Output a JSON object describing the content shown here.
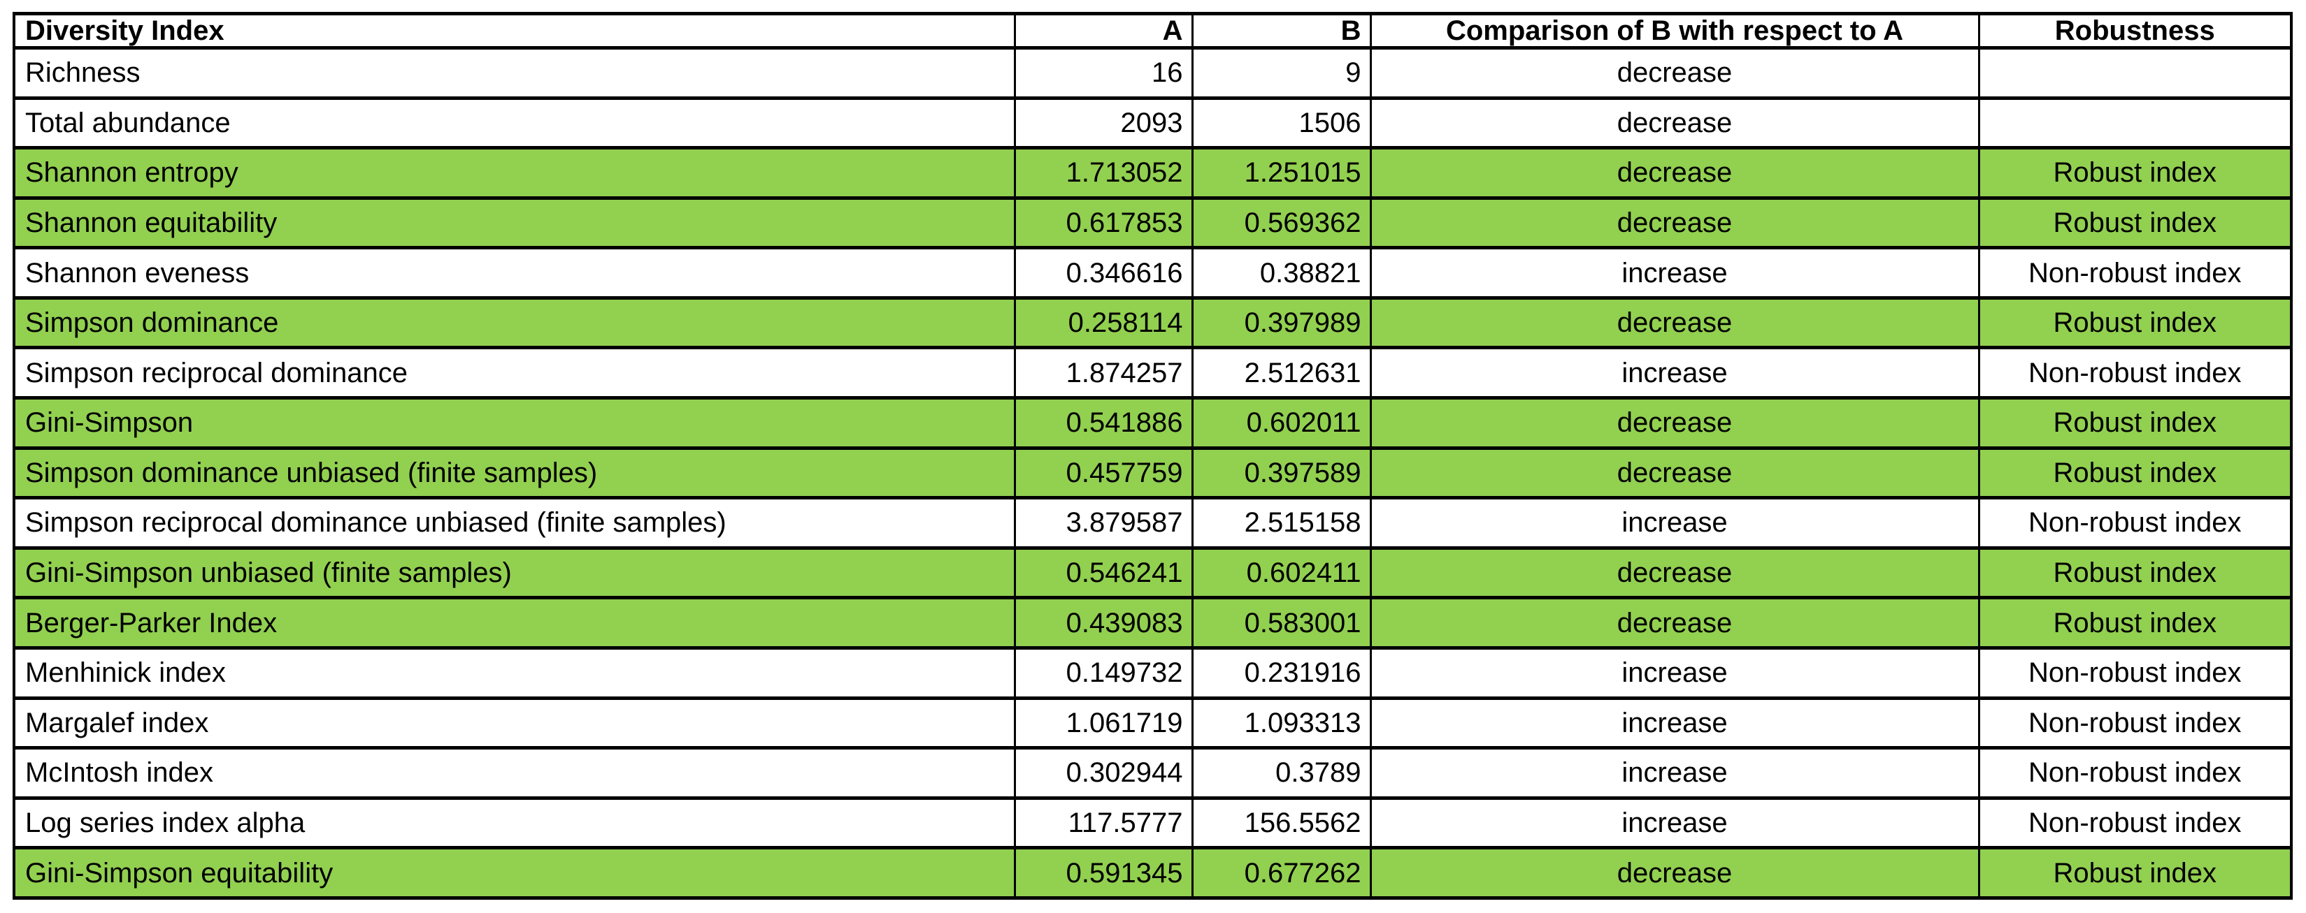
{
  "colors": {
    "highlight_green": "#92d050",
    "border": "#000000",
    "background": "#ffffff",
    "text": "#000000"
  },
  "table": {
    "columns": [
      {
        "key": "name",
        "label": "Diversity Index",
        "align": "left"
      },
      {
        "key": "a",
        "label": "A",
        "align": "right"
      },
      {
        "key": "b",
        "label": "B",
        "align": "right"
      },
      {
        "key": "comparison",
        "label": "Comparison of B with respect to A",
        "align": "center"
      },
      {
        "key": "robustness",
        "label": "Robustness",
        "align": "center"
      }
    ],
    "rows": [
      {
        "name": "Richness",
        "a": "16",
        "b": "9",
        "comparison": "decrease",
        "robustness": "",
        "highlighted": false
      },
      {
        "name": "Total abundance",
        "a": "2093",
        "b": "1506",
        "comparison": "decrease",
        "robustness": "",
        "highlighted": false
      },
      {
        "name": "Shannon entropy",
        "a": "1.713052",
        "b": "1.251015",
        "comparison": "decrease",
        "robustness": "Robust index",
        "highlighted": true
      },
      {
        "name": "Shannon equitability",
        "a": "0.617853",
        "b": "0.569362",
        "comparison": "decrease",
        "robustness": "Robust index",
        "highlighted": true
      },
      {
        "name": "Shannon eveness",
        "a": "0.346616",
        "b": "0.38821",
        "comparison": "increase",
        "robustness": "Non-robust index",
        "highlighted": false
      },
      {
        "name": "Simpson dominance",
        "a": "0.258114",
        "b": "0.397989",
        "comparison": "decrease",
        "robustness": "Robust index",
        "highlighted": true
      },
      {
        "name": "Simpson reciprocal dominance",
        "a": "1.874257",
        "b": "2.512631",
        "comparison": "increase",
        "robustness": "Non-robust index",
        "highlighted": false
      },
      {
        "name": "Gini-Simpson",
        "a": "0.541886",
        "b": "0.602011",
        "comparison": "decrease",
        "robustness": "Robust index",
        "highlighted": true
      },
      {
        "name": "Simpson dominance unbiased (finite samples)",
        "a": "0.457759",
        "b": "0.397589",
        "comparison": "decrease",
        "robustness": "Robust index",
        "highlighted": true
      },
      {
        "name": "Simpson reciprocal dominance unbiased (finite samples)",
        "a": "3.879587",
        "b": "2.515158",
        "comparison": "increase",
        "robustness": "Non-robust index",
        "highlighted": false
      },
      {
        "name": "Gini-Simpson unbiased (finite samples)",
        "a": "0.546241",
        "b": "0.602411",
        "comparison": "decrease",
        "robustness": "Robust index",
        "highlighted": true
      },
      {
        "name": "Berger-Parker Index",
        "a": "0.439083",
        "b": "0.583001",
        "comparison": "decrease",
        "robustness": "Robust index",
        "highlighted": true
      },
      {
        "name": "Menhinick index",
        "a": "0.149732",
        "b": "0.231916",
        "comparison": "increase",
        "robustness": "Non-robust index",
        "highlighted": false
      },
      {
        "name": "Margalef index",
        "a": "1.061719",
        "b": "1.093313",
        "comparison": "increase",
        "robustness": "Non-robust index",
        "highlighted": false
      },
      {
        "name": "McIntosh index",
        "a": "0.302944",
        "b": "0.3789",
        "comparison": "increase",
        "robustness": "Non-robust index",
        "highlighted": false
      },
      {
        "name": "Log series index alpha",
        "a": "117.5777",
        "b": "156.5562",
        "comparison": "increase",
        "robustness": "Non-robust index",
        "highlighted": false
      },
      {
        "name": "Gini-Simpson equitability",
        "a": "0.591345",
        "b": "0.677262",
        "comparison": "decrease",
        "robustness": "Robust index",
        "highlighted": true
      }
    ]
  },
  "chart_data": {
    "type": "table",
    "title": "",
    "columns": [
      "Diversity Index",
      "A",
      "B",
      "Comparison of B with respect to A",
      "Robustness"
    ],
    "rows": [
      [
        "Richness",
        16,
        9,
        "decrease",
        ""
      ],
      [
        "Total abundance",
        2093,
        1506,
        "decrease",
        ""
      ],
      [
        "Shannon entropy",
        1.713052,
        1.251015,
        "decrease",
        "Robust index"
      ],
      [
        "Shannon equitability",
        0.617853,
        0.569362,
        "decrease",
        "Robust index"
      ],
      [
        "Shannon eveness",
        0.346616,
        0.38821,
        "increase",
        "Non-robust index"
      ],
      [
        "Simpson dominance",
        0.258114,
        0.397989,
        "decrease",
        "Robust index"
      ],
      [
        "Simpson reciprocal dominance",
        1.874257,
        2.512631,
        "increase",
        "Non-robust index"
      ],
      [
        "Gini-Simpson",
        0.541886,
        0.602011,
        "decrease",
        "Robust index"
      ],
      [
        "Simpson dominance unbiased (finite samples)",
        0.457759,
        0.397589,
        "decrease",
        "Robust index"
      ],
      [
        "Simpson reciprocal dominance unbiased (finite samples)",
        3.879587,
        2.515158,
        "increase",
        "Non-robust index"
      ],
      [
        "Gini-Simpson unbiased (finite samples)",
        0.546241,
        0.602411,
        "decrease",
        "Robust index"
      ],
      [
        "Berger-Parker Index",
        0.439083,
        0.583001,
        "decrease",
        "Robust index"
      ],
      [
        "Menhinick index",
        0.149732,
        0.231916,
        "increase",
        "Non-robust index"
      ],
      [
        "Margalef index",
        1.061719,
        1.093313,
        "increase",
        "Non-robust index"
      ],
      [
        "McIntosh index",
        0.302944,
        0.3789,
        "increase",
        "Non-robust index"
      ],
      [
        "Log series index alpha",
        117.5777,
        156.5562,
        "increase",
        "Non-robust index"
      ],
      [
        "Gini-Simpson equitability",
        0.591345,
        0.677262,
        "decrease",
        "Robust index"
      ]
    ],
    "highlighted_row_indices": [
      2,
      3,
      5,
      7,
      8,
      10,
      11,
      16
    ],
    "highlight_color": "#92d050",
    "layout": "full-width bordered grid, thick black borders, green fill marks robust indices"
  }
}
